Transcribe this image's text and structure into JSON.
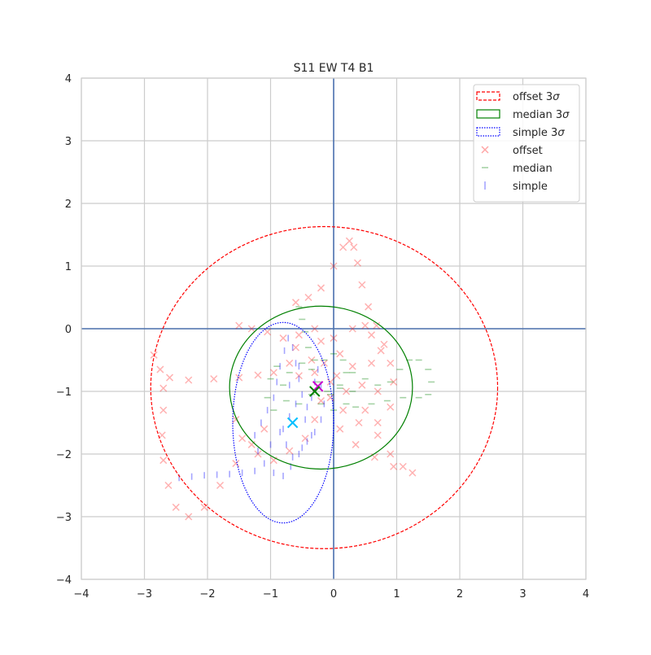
{
  "chart_data": {
    "type": "scatter",
    "title": "S11 EW T4 B1",
    "xlabel": "",
    "ylabel": "",
    "xlim": [
      -4,
      4
    ],
    "ylim": [
      -4,
      4
    ],
    "xticks": [
      -4,
      -3,
      -2,
      -1,
      0,
      1,
      2,
      3,
      4
    ],
    "yticks": [
      -4,
      -3,
      -2,
      -1,
      0,
      1,
      2,
      3,
      4
    ],
    "xtick_labels": [
      "−4",
      "−3",
      "−2",
      "−1",
      "0",
      "1",
      "2",
      "3",
      "4"
    ],
    "ytick_labels": [
      "−4",
      "−3",
      "−2",
      "−1",
      "0",
      "1",
      "2",
      "3",
      "4"
    ],
    "grid": true,
    "axis_lines_at_zero": true,
    "legend_position": "top-right",
    "colors": {
      "offset": "#ff0000",
      "median": "#008000",
      "simple": "#0000ff",
      "zero_line": "#4c72b0",
      "grid": "#cccccc",
      "center_marker": "#cc00cc"
    },
    "ellipses": [
      {
        "name": "offset 3σ",
        "cx": -0.15,
        "cy": -0.94,
        "rx": 2.75,
        "ry": 2.57,
        "style": "dashed",
        "color": "#ff0000"
      },
      {
        "name": "median 3σ",
        "cx": -0.2,
        "cy": -0.94,
        "rx": 1.45,
        "ry": 1.3,
        "style": "solid",
        "color": "#008000"
      },
      {
        "name": "simple 3σ",
        "cx": -0.8,
        "cy": -1.5,
        "rx": 0.8,
        "ry": 1.6,
        "style": "dotted",
        "color": "#0000ff"
      }
    ],
    "series": [
      {
        "name": "offset",
        "marker": "x",
        "color": "#ff0000",
        "points": [
          [
            -2.85,
            -0.42
          ],
          [
            -2.75,
            -0.65
          ],
          [
            -2.6,
            -0.78
          ],
          [
            -2.3,
            -0.82
          ],
          [
            -1.9,
            -0.8
          ],
          [
            -1.5,
            -0.78
          ],
          [
            -1.2,
            -0.74
          ],
          [
            -0.95,
            -0.7
          ],
          [
            -2.7,
            -0.95
          ],
          [
            -2.7,
            -1.3
          ],
          [
            -2.72,
            -1.7
          ],
          [
            -2.7,
            -2.1
          ],
          [
            -2.62,
            -2.5
          ],
          [
            -2.5,
            -2.85
          ],
          [
            -2.3,
            -3.0
          ],
          [
            -2.05,
            -2.85
          ],
          [
            -1.8,
            -2.5
          ],
          [
            -1.55,
            -2.15
          ],
          [
            -1.3,
            -1.85
          ],
          [
            -1.1,
            -1.6
          ],
          [
            -0.6,
            0.42
          ],
          [
            -0.4,
            0.5
          ],
          [
            -0.2,
            0.65
          ],
          [
            0.0,
            1.0
          ],
          [
            0.15,
            1.3
          ],
          [
            0.25,
            1.4
          ],
          [
            0.32,
            1.3
          ],
          [
            0.38,
            1.05
          ],
          [
            0.45,
            0.7
          ],
          [
            0.55,
            0.35
          ],
          [
            0.68,
            0.05
          ],
          [
            0.8,
            -0.25
          ],
          [
            0.9,
            -0.55
          ],
          [
            0.95,
            -0.85
          ],
          [
            -1.5,
            0.05
          ],
          [
            -1.3,
            0.0
          ],
          [
            -1.05,
            -0.05
          ],
          [
            -0.8,
            -0.15
          ],
          [
            -0.55,
            -0.1
          ],
          [
            -0.3,
            0.0
          ],
          [
            -0.2,
            -0.2
          ],
          [
            0.6,
            -0.1
          ],
          [
            0.75,
            -0.35
          ],
          [
            0.6,
            -0.55
          ],
          [
            0.3,
            -0.6
          ],
          [
            0.1,
            -0.4
          ],
          [
            0.0,
            -0.15
          ],
          [
            0.3,
            0.0
          ],
          [
            0.5,
            0.05
          ],
          [
            0.5,
            -1.3
          ],
          [
            0.7,
            -1.7
          ],
          [
            0.9,
            -2.0
          ],
          [
            1.1,
            -2.2
          ],
          [
            1.25,
            -2.3
          ],
          [
            0.95,
            -2.2
          ],
          [
            0.65,
            -2.05
          ],
          [
            0.35,
            -1.85
          ],
          [
            0.1,
            -1.6
          ],
          [
            -0.3,
            -0.7
          ],
          [
            -0.05,
            -0.85
          ],
          [
            0.2,
            -1.0
          ],
          [
            0.45,
            -0.9
          ],
          [
            0.7,
            -1.0
          ],
          [
            0.9,
            -1.25
          ],
          [
            0.7,
            -1.5
          ],
          [
            0.4,
            -1.5
          ],
          [
            0.15,
            -1.3
          ],
          [
            -0.05,
            -1.1
          ],
          [
            -1.55,
            -1.45
          ],
          [
            -1.45,
            -1.75
          ],
          [
            -1.2,
            -2.0
          ],
          [
            -0.95,
            -2.1
          ],
          [
            -0.7,
            -1.95
          ],
          [
            -0.45,
            -1.75
          ],
          [
            -0.3,
            -1.45
          ],
          [
            -0.2,
            -1.15
          ],
          [
            -0.6,
            -0.3
          ],
          [
            -0.7,
            -0.55
          ],
          [
            -0.55,
            -0.75
          ],
          [
            -0.35,
            -0.5
          ],
          [
            -0.15,
            -0.55
          ],
          [
            0.05,
            -0.75
          ]
        ]
      },
      {
        "name": "median",
        "marker": "_",
        "color": "#008000",
        "points": [
          [
            -0.55,
            0.35
          ],
          [
            -0.5,
            0.15
          ],
          [
            -0.45,
            -0.05
          ],
          [
            -0.4,
            -0.3
          ],
          [
            -0.3,
            -0.5
          ],
          [
            -0.15,
            -0.5
          ],
          [
            0.0,
            -0.4
          ],
          [
            0.15,
            -0.5
          ],
          [
            0.2,
            -0.7
          ],
          [
            0.1,
            -0.9
          ],
          [
            -0.1,
            -1.0
          ],
          [
            -0.25,
            -0.85
          ],
          [
            -0.35,
            -0.65
          ],
          [
            -0.5,
            -0.55
          ],
          [
            -0.7,
            -0.7
          ],
          [
            -0.8,
            -0.9
          ],
          [
            -0.75,
            -1.15
          ],
          [
            -0.55,
            -1.2
          ],
          [
            -0.35,
            -1.05
          ],
          [
            0.3,
            -0.7
          ],
          [
            0.5,
            -0.8
          ],
          [
            0.7,
            -0.9
          ],
          [
            0.9,
            -0.85
          ],
          [
            1.05,
            -0.65
          ],
          [
            1.2,
            -0.5
          ],
          [
            1.35,
            -0.5
          ],
          [
            1.5,
            -0.65
          ],
          [
            1.55,
            -0.85
          ],
          [
            1.5,
            -1.05
          ],
          [
            1.35,
            -1.1
          ],
          [
            1.1,
            -1.1
          ],
          [
            0.85,
            -1.15
          ],
          [
            0.6,
            -1.2
          ],
          [
            0.35,
            -1.25
          ],
          [
            -0.2,
            -1.2
          ],
          [
            0.0,
            -1.3
          ],
          [
            0.2,
            -1.2
          ],
          [
            0.3,
            -1.0
          ],
          [
            0.1,
            -0.95
          ],
          [
            -0.05,
            -1.05
          ],
          [
            -1.0,
            -0.8
          ],
          [
            -0.9,
            -0.6
          ],
          [
            -1.05,
            -1.1
          ],
          [
            -0.95,
            -1.3
          ]
        ]
      },
      {
        "name": "simple",
        "marker": "|",
        "color": "#0000ff",
        "points": [
          [
            -2.45,
            -2.38
          ],
          [
            -2.25,
            -2.36
          ],
          [
            -2.05,
            -2.34
          ],
          [
            -1.85,
            -2.33
          ],
          [
            -1.65,
            -2.32
          ],
          [
            -1.45,
            -2.3
          ],
          [
            -1.25,
            -2.27
          ],
          [
            -1.15,
            -1.5
          ],
          [
            -1.05,
            -1.3
          ],
          [
            -0.95,
            -1.1
          ],
          [
            -0.9,
            -0.85
          ],
          [
            -0.85,
            -0.6
          ],
          [
            -0.78,
            -0.35
          ],
          [
            -0.72,
            -0.15
          ],
          [
            -0.65,
            -0.3
          ],
          [
            -0.6,
            -0.55
          ],
          [
            -0.55,
            -0.8
          ],
          [
            -0.5,
            -1.05
          ],
          [
            -0.42,
            -1.25
          ],
          [
            -0.35,
            -1.1
          ],
          [
            -0.3,
            -0.85
          ],
          [
            -0.25,
            -0.65
          ],
          [
            -0.2,
            -0.9
          ],
          [
            -0.15,
            -1.2
          ],
          [
            -0.2,
            -1.45
          ],
          [
            -0.3,
            -1.65
          ],
          [
            -0.42,
            -1.8
          ],
          [
            -0.55,
            -2.0
          ],
          [
            -0.68,
            -2.2
          ],
          [
            -0.8,
            -2.35
          ],
          [
            -0.95,
            -2.3
          ],
          [
            -1.1,
            -2.15
          ],
          [
            -1.2,
            -1.95
          ],
          [
            -1.25,
            -1.7
          ],
          [
            -1.0,
            -1.85
          ],
          [
            -0.85,
            -1.65
          ],
          [
            -0.7,
            -1.4
          ],
          [
            -0.6,
            -1.2
          ],
          [
            -0.45,
            -1.45
          ],
          [
            -0.35,
            -1.7
          ],
          [
            -0.5,
            -1.9
          ],
          [
            -0.65,
            -2.05
          ],
          [
            -0.75,
            -1.85
          ],
          [
            -0.8,
            -1.6
          ],
          [
            -0.7,
            -0.9
          ],
          [
            -0.55,
            -0.6
          ]
        ]
      }
    ],
    "legend": [
      {
        "label": "offset 3",
        "sigma": "σ",
        "kind": "patch-dashed",
        "color": "#ff0000"
      },
      {
        "label": "median 3",
        "sigma": "σ",
        "kind": "patch-solid",
        "color": "#008000"
      },
      {
        "label": "simple 3",
        "sigma": "σ",
        "kind": "patch-dotted",
        "color": "#0000ff"
      },
      {
        "label": "offset",
        "sigma": "",
        "kind": "marker-x",
        "color": "#ff0000"
      },
      {
        "label": "median",
        "sigma": "",
        "kind": "marker-hline",
        "color": "#008000"
      },
      {
        "label": "simple",
        "sigma": "",
        "kind": "marker-vline",
        "color": "#0000ff"
      }
    ],
    "centers": [
      {
        "name": "offset center",
        "x": -0.25,
        "y": -0.92,
        "color": "#cc00cc"
      },
      {
        "name": "median center",
        "x": -0.3,
        "y": -1.0,
        "color": "#008000"
      },
      {
        "name": "simple center",
        "x": -0.65,
        "y": -1.5,
        "color": "#00bfff"
      }
    ]
  }
}
